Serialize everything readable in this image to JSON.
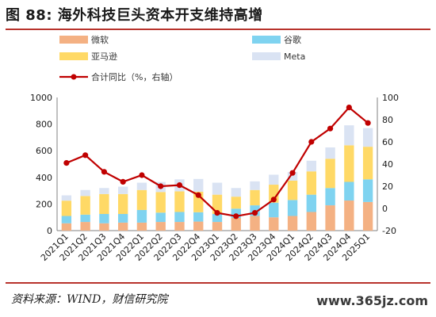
{
  "header": {
    "title": "图 88: 海外科技巨头资本开支维持高增"
  },
  "footer": {
    "source": "资料来源：WIND，财信研究院",
    "watermark": "www.365jz.com"
  },
  "colors": {
    "microsoft": "#f4b183",
    "google": "#7fd3f0",
    "amazon": "#ffd966",
    "meta": "#dae3f3",
    "yoy_line": "#c00000",
    "rule": "#b8332c"
  },
  "chart_data": {
    "type": "bar",
    "stacked": true,
    "categories": [
      "2021Q1",
      "2021Q2",
      "2021Q3",
      "2021Q4",
      "2022Q1",
      "2022Q2",
      "2022Q3",
      "2022Q4",
      "2023Q1",
      "2023Q2",
      "2023Q3",
      "2023Q4",
      "2024Q1",
      "2024Q2",
      "2024Q3",
      "2024Q4",
      "2025Q1"
    ],
    "series": [
      {
        "name": "微软",
        "values": [
          55,
          65,
          55,
          60,
          60,
          65,
          65,
          68,
          65,
          95,
          110,
          100,
          110,
          140,
          190,
          226,
          215
        ]
      },
      {
        "name": "谷歌",
        "values": [
          55,
          55,
          70,
          65,
          95,
          70,
          75,
          70,
          60,
          70,
          80,
          110,
          120,
          130,
          130,
          140,
          170
        ]
      },
      {
        "name": "亚马逊",
        "values": [
          115,
          140,
          150,
          150,
          150,
          155,
          155,
          155,
          145,
          90,
          115,
          135,
          145,
          175,
          220,
          275,
          245
        ]
      },
      {
        "name": "Meta",
        "values": [
          40,
          45,
          45,
          55,
          55,
          75,
          90,
          95,
          90,
          65,
          65,
          75,
          65,
          80,
          85,
          150,
          140
        ]
      }
    ],
    "line_series": {
      "name": "合计同比（%，右轴）",
      "axis": "right",
      "values": [
        41,
        48,
        33,
        24,
        30,
        20,
        21,
        12,
        -4,
        -7,
        -4,
        8,
        32,
        60,
        72,
        91,
        77
      ]
    },
    "y_left": {
      "ylim": [
        0,
        1000
      ],
      "ticks": [
        "0",
        "200",
        "400",
        "600",
        "800",
        "1000"
      ]
    },
    "y_right": {
      "ylim": [
        -20,
        100
      ],
      "ticks": [
        "-20",
        "0",
        "20",
        "40",
        "60",
        "80",
        "100"
      ]
    },
    "legend": {
      "placement": "top",
      "columns": 2
    }
  }
}
